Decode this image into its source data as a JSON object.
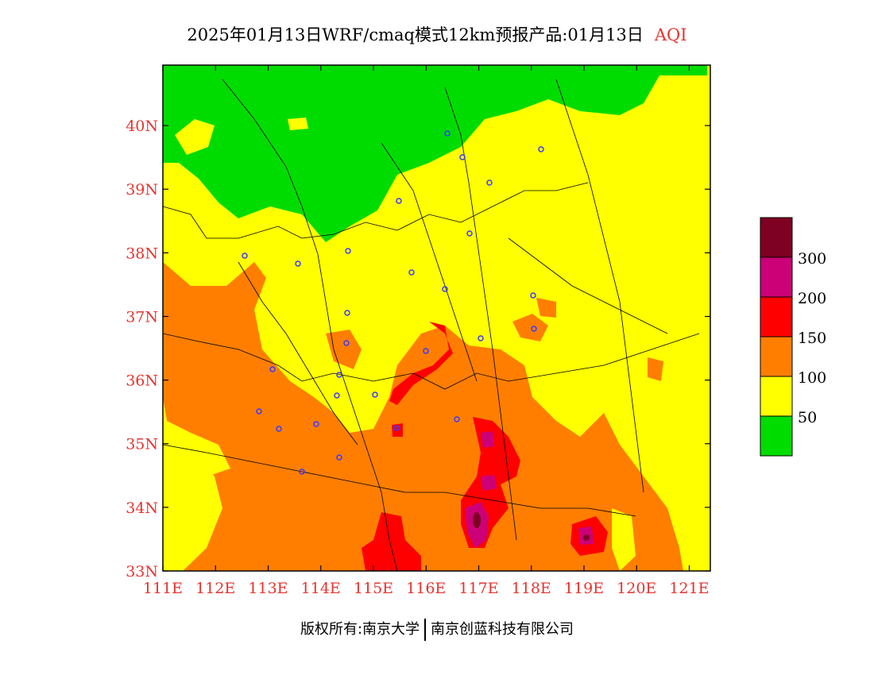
{
  "title": {
    "main": "2025年01月13日WRF/cmaq模式12km预报产品:01月13日",
    "product": "AQI"
  },
  "chart_data": {
    "type": "heatmap",
    "x_axis": {
      "range": [
        111,
        121.4
      ],
      "ticks": [
        111,
        112,
        113,
        114,
        115,
        116,
        117,
        118,
        119,
        120,
        121
      ],
      "tick_labels": [
        "111E",
        "112E",
        "113E",
        "114E",
        "115E",
        "116E",
        "117E",
        "118E",
        "119E",
        "120E",
        "121E"
      ]
    },
    "y_axis": {
      "range": [
        33,
        40.95
      ],
      "ticks": [
        33,
        34,
        35,
        36,
        37,
        38,
        39,
        40
      ],
      "tick_labels": [
        "33N",
        "34N",
        "35N",
        "36N",
        "37N",
        "38N",
        "39N",
        "40N"
      ]
    },
    "legend": {
      "placement": "right",
      "levels": [
        {
          "color": "#00dc00",
          "label": "50"
        },
        {
          "color": "#ffff00",
          "label": "100"
        },
        {
          "color": "#ff7e00",
          "label": "150"
        },
        {
          "color": "#ff0000",
          "label": "200"
        },
        {
          "color": "#cc0077",
          "label": "300"
        },
        {
          "color": "#7e0023",
          "label": ""
        }
      ]
    },
    "hotspots": [
      {
        "lon": 116.95,
        "lat": 33.8,
        "level": "300+"
      },
      {
        "lon": 119.0,
        "lat": 33.55,
        "level": "200-300"
      },
      {
        "lon": 117.0,
        "lat": 35.1,
        "level": "200-300"
      },
      {
        "lon": 117.0,
        "lat": 34.35,
        "level": "200-300"
      }
    ]
  },
  "footer": {
    "left": "版权所有:南京大学",
    "right": "南京创蓝科技有限公司"
  }
}
